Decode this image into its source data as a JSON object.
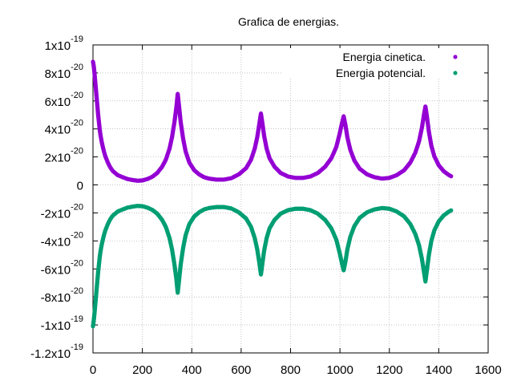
{
  "chart_data": {
    "type": "scatter",
    "title": "Grafica de energias.",
    "xlabel": "",
    "ylabel": "",
    "xlim": [
      0,
      1600
    ],
    "ylim": [
      -1.2e-19,
      1e-19
    ],
    "grid": true,
    "legend_position": "top-right",
    "x_ticks": [
      {
        "value": 0,
        "label": "0"
      },
      {
        "value": 200,
        "label": "200"
      },
      {
        "value": 400,
        "label": "400"
      },
      {
        "value": 600,
        "label": "600"
      },
      {
        "value": 800,
        "label": "800"
      },
      {
        "value": 1000,
        "label": "1000"
      },
      {
        "value": 1200,
        "label": "1200"
      },
      {
        "value": 1400,
        "label": "1400"
      },
      {
        "value": 1600,
        "label": "1600"
      }
    ],
    "y_ticks": [
      {
        "value": 1e-19,
        "base": "1x10",
        "exp": "-19"
      },
      {
        "value": 8e-20,
        "base": "8x10",
        "exp": "-20"
      },
      {
        "value": 6e-20,
        "base": "6x10",
        "exp": "-20"
      },
      {
        "value": 4e-20,
        "base": "4x10",
        "exp": "-20"
      },
      {
        "value": 2e-20,
        "base": "2x10",
        "exp": "-20"
      },
      {
        "value": 0,
        "base": "0",
        "exp": ""
      },
      {
        "value": -2e-20,
        "base": "-2x10",
        "exp": "-20"
      },
      {
        "value": -4e-20,
        "base": "-4x10",
        "exp": "-20"
      },
      {
        "value": -6e-20,
        "base": "-6x10",
        "exp": "-20"
      },
      {
        "value": -8e-20,
        "base": "-8x10",
        "exp": "-20"
      },
      {
        "value": -1e-19,
        "base": "-1x10",
        "exp": "-19"
      },
      {
        "value": -1.2e-19,
        "base": "-1.2x10",
        "exp": "-19"
      }
    ],
    "series": [
      {
        "name": "Energia cinetica.",
        "color": "#9400d3",
        "points": [
          [
            0,
            8.8e-20
          ],
          [
            3,
            8.5e-20
          ],
          [
            6,
            8e-20
          ],
          [
            9,
            7.4e-20
          ],
          [
            12,
            6.8e-20
          ],
          [
            15,
            6.2e-20
          ],
          [
            18,
            5.6e-20
          ],
          [
            21,
            5e-20
          ],
          [
            24,
            4.5e-20
          ],
          [
            27,
            4e-20
          ],
          [
            30,
            3.6e-20
          ],
          [
            35,
            3.1e-20
          ],
          [
            40,
            2.7e-20
          ],
          [
            45,
            2.35e-20
          ],
          [
            50,
            2.05e-20
          ],
          [
            60,
            1.6e-20
          ],
          [
            70,
            1.25e-20
          ],
          [
            80,
            1e-20
          ],
          [
            90,
            8.5e-21
          ],
          [
            100,
            7e-21
          ],
          [
            120,
            5.5e-21
          ],
          [
            140,
            4.2e-21
          ],
          [
            160,
            3.5e-21
          ],
          [
            180,
            3e-21
          ],
          [
            200,
            3.2e-21
          ],
          [
            220,
            4.2e-21
          ],
          [
            240,
            5.8e-21
          ],
          [
            260,
            8.5e-21
          ],
          [
            280,
            1.3e-20
          ],
          [
            295,
            1.8e-20
          ],
          [
            310,
            2.6e-20
          ],
          [
            320,
            3.4e-20
          ],
          [
            330,
            4.5e-20
          ],
          [
            338,
            5.6e-20
          ],
          [
            343,
            6.5e-20
          ],
          [
            348,
            5.7e-20
          ],
          [
            355,
            4.5e-20
          ],
          [
            365,
            3.3e-20
          ],
          [
            375,
            2.4e-20
          ],
          [
            390,
            1.6e-20
          ],
          [
            410,
            1.05e-20
          ],
          [
            430,
            7.5e-21
          ],
          [
            450,
            5.5e-21
          ],
          [
            470,
            4.5e-21
          ],
          [
            500,
            3.8e-21
          ],
          [
            530,
            3.8e-21
          ],
          [
            560,
            4.8e-21
          ],
          [
            590,
            7.5e-21
          ],
          [
            620,
            1.2e-20
          ],
          [
            640,
            1.8e-20
          ],
          [
            655,
            2.6e-20
          ],
          [
            665,
            3.4e-20
          ],
          [
            673,
            4.3e-20
          ],
          [
            680,
            5.1e-20
          ],
          [
            686,
            4.4e-20
          ],
          [
            693,
            3.5e-20
          ],
          [
            703,
            2.6e-20
          ],
          [
            715,
            1.9e-20
          ],
          [
            735,
            1.3e-20
          ],
          [
            760,
            8.5e-21
          ],
          [
            790,
            6e-21
          ],
          [
            820,
            5e-21
          ],
          [
            850,
            5e-21
          ],
          [
            880,
            6e-21
          ],
          [
            910,
            8.5e-21
          ],
          [
            940,
            1.3e-20
          ],
          [
            965,
            1.9e-20
          ],
          [
            985,
            2.7e-20
          ],
          [
            998,
            3.6e-20
          ],
          [
            1008,
            4.4e-20
          ],
          [
            1015,
            4.9e-20
          ],
          [
            1022,
            4.3e-20
          ],
          [
            1030,
            3.4e-20
          ],
          [
            1042,
            2.5e-20
          ],
          [
            1058,
            1.75e-20
          ],
          [
            1080,
            1.15e-20
          ],
          [
            1110,
            7.5e-21
          ],
          [
            1140,
            5.5e-21
          ],
          [
            1170,
            4.5e-21
          ],
          [
            1200,
            5e-21
          ],
          [
            1230,
            7e-21
          ],
          [
            1260,
            1.05e-20
          ],
          [
            1285,
            1.6e-20
          ],
          [
            1305,
            2.3e-20
          ],
          [
            1320,
            3.1e-20
          ],
          [
            1332,
            4.1e-20
          ],
          [
            1340,
            5e-20
          ],
          [
            1346,
            5.6e-20
          ],
          [
            1352,
            4.9e-20
          ],
          [
            1360,
            3.8e-20
          ],
          [
            1370,
            2.8e-20
          ],
          [
            1382,
            2.05e-20
          ],
          [
            1400,
            1.4e-20
          ],
          [
            1420,
            9.8e-21
          ],
          [
            1440,
            7.2e-21
          ],
          [
            1450,
            6.2e-21
          ]
        ]
      },
      {
        "name": "Energia potencial.",
        "color": "#009e73",
        "points": [
          [
            0,
            -1.01e-19
          ],
          [
            3,
            -9.7e-20
          ],
          [
            6,
            -9.2e-20
          ],
          [
            9,
            -8.6e-20
          ],
          [
            12,
            -8e-20
          ],
          [
            15,
            -7.4e-20
          ],
          [
            18,
            -6.8e-20
          ],
          [
            21,
            -6.2e-20
          ],
          [
            24,
            -5.7e-20
          ],
          [
            27,
            -5.2e-20
          ],
          [
            30,
            -4.8e-20
          ],
          [
            35,
            -4.3e-20
          ],
          [
            40,
            -3.9e-20
          ],
          [
            45,
            -3.55e-20
          ],
          [
            50,
            -3.25e-20
          ],
          [
            60,
            -2.8e-20
          ],
          [
            70,
            -2.45e-20
          ],
          [
            80,
            -2.2e-20
          ],
          [
            90,
            -2.05e-20
          ],
          [
            100,
            -1.9e-20
          ],
          [
            120,
            -1.75e-20
          ],
          [
            140,
            -1.62e-20
          ],
          [
            160,
            -1.55e-20
          ],
          [
            180,
            -1.5e-20
          ],
          [
            200,
            -1.52e-20
          ],
          [
            220,
            -1.62e-20
          ],
          [
            240,
            -1.78e-20
          ],
          [
            260,
            -2.05e-20
          ],
          [
            280,
            -2.5e-20
          ],
          [
            295,
            -3e-20
          ],
          [
            310,
            -3.8e-20
          ],
          [
            320,
            -4.6e-20
          ],
          [
            330,
            -5.7e-20
          ],
          [
            338,
            -6.8e-20
          ],
          [
            343,
            -7.7e-20
          ],
          [
            348,
            -6.9e-20
          ],
          [
            355,
            -5.7e-20
          ],
          [
            365,
            -4.5e-20
          ],
          [
            375,
            -3.6e-20
          ],
          [
            390,
            -2.8e-20
          ],
          [
            410,
            -2.25e-20
          ],
          [
            430,
            -1.95e-20
          ],
          [
            450,
            -1.75e-20
          ],
          [
            470,
            -1.65e-20
          ],
          [
            500,
            -1.58e-20
          ],
          [
            530,
            -1.58e-20
          ],
          [
            560,
            -1.68e-20
          ],
          [
            590,
            -1.95e-20
          ],
          [
            620,
            -2.4e-20
          ],
          [
            640,
            -3e-20
          ],
          [
            655,
            -3.8e-20
          ],
          [
            665,
            -4.6e-20
          ],
          [
            673,
            -5.5e-20
          ],
          [
            680,
            -6.4e-20
          ],
          [
            686,
            -5.6e-20
          ],
          [
            693,
            -4.7e-20
          ],
          [
            703,
            -3.8e-20
          ],
          [
            715,
            -3.1e-20
          ],
          [
            735,
            -2.5e-20
          ],
          [
            760,
            -2.05e-20
          ],
          [
            790,
            -1.8e-20
          ],
          [
            820,
            -1.7e-20
          ],
          [
            850,
            -1.7e-20
          ],
          [
            880,
            -1.8e-20
          ],
          [
            910,
            -2.05e-20
          ],
          [
            940,
            -2.5e-20
          ],
          [
            965,
            -3.1e-20
          ],
          [
            985,
            -3.9e-20
          ],
          [
            998,
            -4.8e-20
          ],
          [
            1008,
            -5.6e-20
          ],
          [
            1015,
            -6.1e-20
          ],
          [
            1022,
            -5.5e-20
          ],
          [
            1030,
            -4.6e-20
          ],
          [
            1042,
            -3.7e-20
          ],
          [
            1058,
            -2.95e-20
          ],
          [
            1080,
            -2.35e-20
          ],
          [
            1110,
            -1.95e-20
          ],
          [
            1140,
            -1.75e-20
          ],
          [
            1170,
            -1.65e-20
          ],
          [
            1200,
            -1.7e-20
          ],
          [
            1230,
            -1.9e-20
          ],
          [
            1260,
            -2.25e-20
          ],
          [
            1285,
            -2.8e-20
          ],
          [
            1305,
            -3.5e-20
          ],
          [
            1320,
            -4.3e-20
          ],
          [
            1332,
            -5.3e-20
          ],
          [
            1340,
            -6.2e-20
          ],
          [
            1346,
            -6.9e-20
          ],
          [
            1352,
            -6.1e-20
          ],
          [
            1360,
            -5e-20
          ],
          [
            1370,
            -4e-20
          ],
          [
            1382,
            -3.25e-20
          ],
          [
            1400,
            -2.6e-20
          ],
          [
            1420,
            -2.18e-20
          ],
          [
            1440,
            -1.92e-20
          ],
          [
            1450,
            -1.82e-20
          ]
        ]
      }
    ]
  }
}
